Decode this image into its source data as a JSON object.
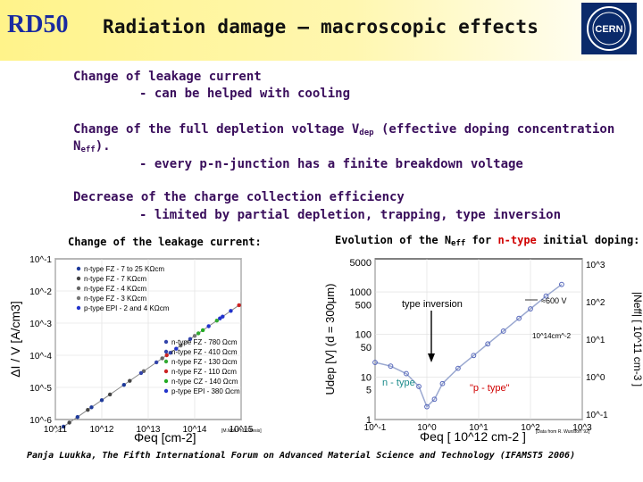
{
  "header": {
    "logo_text": "RD50",
    "title": "Radiation damage – macroscopic effects",
    "cern_logo_text": "CERN"
  },
  "bullets": {
    "b1_line1": "Change of leakage current",
    "b1_line2": "- can be helped with cooling",
    "b2_line1_pre": "Change of the full depletion voltage V",
    "b2_sub1": "dep",
    "b2_line1_post": " (effective doping concentration",
    "b2_line2_pre": "N",
    "b2_sub2": "eff",
    "b2_line2_post": ").",
    "b2_line3": "- every p-n-junction has a finite breakdown voltage",
    "b3_line1": "Decrease of the charge collection efficiency",
    "b3_line2": "- limited by partial depletion, trapping, type inversion"
  },
  "captions": {
    "left": "Change of the leakage current:",
    "right_pre": "Evolution of the N",
    "right_sub": "eff",
    "right_mid": " for ",
    "right_red": "n-type",
    "right_post": " initial doping:"
  },
  "footer": "Panja Luukka, The Fifth International Forum on Advanced Material Science and Technology (IFAMST5 2006)",
  "chart_data": [
    {
      "type": "scatter",
      "xlabel": "Φeq [cm-2]",
      "ylabel": "ΔI / V [A/cm3]",
      "x_ticks": [
        "10^11",
        "10^12",
        "10^13",
        "10^14",
        "10^15"
      ],
      "y_ticks": [
        "10^-1",
        "10^-2",
        "10^-3",
        "10^-4",
        "10^-5",
        "10^-6"
      ],
      "xlim": [
        100000000000.0,
        1000000000000000.0
      ],
      "ylim": [
        1e-06,
        0.1
      ],
      "legend_top": [
        "n-type FZ - 7 to 25 KΩcm",
        "n-type FZ - 7 KΩcm",
        "n-type FZ - 4 KΩcm",
        "n-type FZ - 3 KΩcm",
        "p-type EPI - 2 and 4 KΩcm"
      ],
      "legend_bottom": [
        "n-type FZ - 780 Ωcm",
        "n-type FZ - 410 Ωcm",
        "n-type FZ - 130 Ωcm",
        "n-type FZ - 110 Ωcm",
        "n-type CZ - 140 Ωcm",
        "p-type EPI - 380 Ωcm"
      ],
      "source": "[M.Moll PhD Thesis]",
      "trend": {
        "x": [
          100000000000.0,
          1000000000000000.0
        ],
        "y": [
          4e-07,
          0.004
        ]
      },
      "series": [
        {
          "name": "n-type FZ - 7 to 25 KΩcm",
          "color": "#1e3a9a",
          "points": [
            [
              150000000000.0,
              6e-07
            ],
            [
              300000000000.0,
              1.2e-06
            ],
            [
              600000000000.0,
              2.4e-06
            ],
            [
              1000000000000.0,
              4e-06
            ],
            [
              3000000000000.0,
              1.2e-05
            ]
          ]
        },
        {
          "name": "n-type FZ - 7 KΩcm",
          "color": "#444444",
          "points": [
            [
              200000000000.0,
              8e-07
            ],
            [
              500000000000.0,
              2e-06
            ],
            [
              1500000000000.0,
              6e-06
            ],
            [
              4000000000000.0,
              1.6e-05
            ]
          ]
        },
        {
          "name": "n-type FZ - 4 KΩcm",
          "color": "#666666",
          "points": [
            [
              8000000000000.0,
              3.2e-05
            ],
            [
              20000000000000.0,
              8e-05
            ]
          ]
        },
        {
          "name": "n-type FZ - 3 KΩcm",
          "color": "#777777",
          "points": [
            [
              50000000000000.0,
              0.0002
            ],
            [
              100000000000000.0,
              0.0004
            ]
          ]
        },
        {
          "name": "p-type EPI - 2 and 4 KΩcm",
          "color": "#2233cc",
          "points": [
            [
              200000000000000.0,
              0.0008
            ],
            [
              400000000000000.0,
              0.0016
            ],
            [
              600000000000000.0,
              0.0024
            ]
          ]
        },
        {
          "name": "n-type FZ - 780 Ωcm",
          "color": "#3344aa",
          "points": [
            [
              7000000000000.0,
              2.8e-05
            ],
            [
              15000000000000.0,
              6e-05
            ]
          ]
        },
        {
          "name": "n-type FZ - 410 Ωcm",
          "color": "#3344aa",
          "points": [
            [
              30000000000000.0,
              0.00012
            ],
            [
              80000000000000.0,
              0.00032
            ]
          ]
        },
        {
          "name": "n-type FZ - 130 Ωcm",
          "color": "#33aa33",
          "points": [
            [
              120000000000000.0,
              0.00048
            ],
            [
              300000000000000.0,
              0.0012
            ]
          ]
        },
        {
          "name": "n-type FZ - 110 Ωcm",
          "color": "#cc2222",
          "points": [
            [
              25000000000000.0,
              0.0001
            ],
            [
              900000000000000.0,
              0.0036
            ]
          ]
        },
        {
          "name": "n-type CZ - 140 Ωcm",
          "color": "#22aa22",
          "points": [
            [
              150000000000000.0,
              0.0006
            ]
          ]
        },
        {
          "name": "p-type EPI - 380 Ωcm",
          "color": "#2233cc",
          "points": [
            [
              40000000000000.0,
              0.00016
            ],
            [
              350000000000000.0,
              0.0014
            ]
          ]
        }
      ]
    },
    {
      "type": "line",
      "xlabel": "Φeq [ 10^12 cm-2 ]",
      "ylabel_left": "Udep [V] (d = 300μm)",
      "ylabel_right": "|Neff| [ 10^11 cm-3 ]",
      "x_ticks": [
        "10^-1",
        "10^0",
        "10^1",
        "10^2",
        "10^3"
      ],
      "y_ticks_left": [
        "5000",
        "1000",
        "500",
        "100",
        "50",
        "10",
        "5",
        "1"
      ],
      "y_ticks_right": [
        "10^3",
        "10^2",
        "10^1",
        "10^0",
        "10^-1"
      ],
      "xlim": [
        0.1,
        1000
      ],
      "ylim": [
        1,
        6000
      ],
      "annotations": [
        "type inversion",
        "≈600 V",
        "10^14cm^-2",
        "n - type",
        "\"p - type\""
      ],
      "source": "[Data from R. Wunstorf '92]",
      "points": [
        [
          0.1,
          22
        ],
        [
          0.2,
          18
        ],
        [
          0.4,
          12
        ],
        [
          0.7,
          6
        ],
        [
          1.0,
          2
        ],
        [
          1.4,
          3
        ],
        [
          2,
          7
        ],
        [
          4,
          16
        ],
        [
          8,
          32
        ],
        [
          15,
          60
        ],
        [
          30,
          120
        ],
        [
          60,
          240
        ],
        [
          100,
          400
        ],
        [
          200,
          800
        ],
        [
          400,
          1500
        ]
      ]
    }
  ]
}
